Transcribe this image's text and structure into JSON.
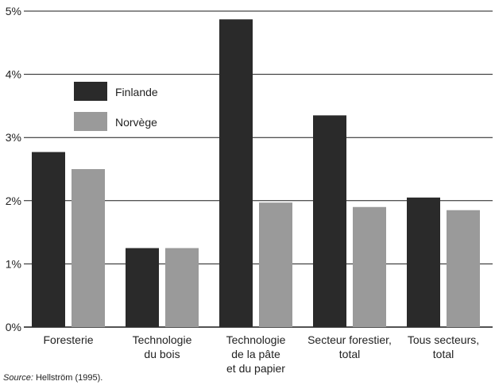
{
  "chart_data": {
    "type": "bar",
    "categories": [
      [
        "Foresterie"
      ],
      [
        "Technologie",
        "du bois"
      ],
      [
        "Technologie",
        "de la pâte",
        "et du papier"
      ],
      [
        "Secteur forestier,",
        "total"
      ],
      [
        "Tous secteurs,",
        "total"
      ]
    ],
    "series": [
      {
        "name": "Finlande",
        "color": "#2a2a2a",
        "values": [
          2.77,
          1.25,
          4.87,
          3.35,
          2.05
        ]
      },
      {
        "name": "Norvège",
        "color": "#9a9a9a",
        "values": [
          2.5,
          1.25,
          1.97,
          1.9,
          1.85
        ]
      }
    ],
    "yticks": [
      "0%",
      "1%",
      "2%",
      "3%",
      "4%",
      "5%"
    ],
    "ylim": [
      0,
      5
    ],
    "grid": true,
    "legend_position": "top-left inside plot"
  },
  "source": {
    "label": "Source:",
    "text": " Hellström (1995)."
  }
}
